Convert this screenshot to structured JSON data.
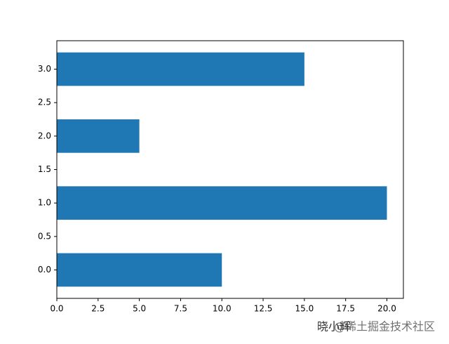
{
  "chart_data": {
    "type": "barh",
    "y": [
      0,
      1,
      2,
      3
    ],
    "values": [
      10,
      20,
      5,
      15
    ],
    "color": "#1f77b4",
    "xlim": [
      0,
      21
    ],
    "xticks": [
      {
        "value": 0,
        "label": "0.0"
      },
      {
        "value": 2.5,
        "label": "2.5"
      },
      {
        "value": 5,
        "label": "5.0"
      },
      {
        "value": 7.5,
        "label": "7.5"
      },
      {
        "value": 10,
        "label": "10.0"
      },
      {
        "value": 12.5,
        "label": "12.5"
      },
      {
        "value": 15,
        "label": "15.0"
      },
      {
        "value": 17.5,
        "label": "17.5"
      },
      {
        "value": 20,
        "label": "20.0"
      }
    ],
    "ylim": [
      -0.425,
      3.425
    ],
    "yticks": [
      {
        "value": 0,
        "label": "0.0"
      },
      {
        "value": 0.5,
        "label": "0.5"
      },
      {
        "value": 1,
        "label": "1.0"
      },
      {
        "value": 1.5,
        "label": "1.5"
      },
      {
        "value": 2,
        "label": "2.0"
      },
      {
        "value": 2.5,
        "label": "2.5"
      },
      {
        "value": 3,
        "label": "3.0"
      }
    ],
    "watermarks": [
      "晓小辉",
      "@稀土掘金技术社区"
    ]
  }
}
